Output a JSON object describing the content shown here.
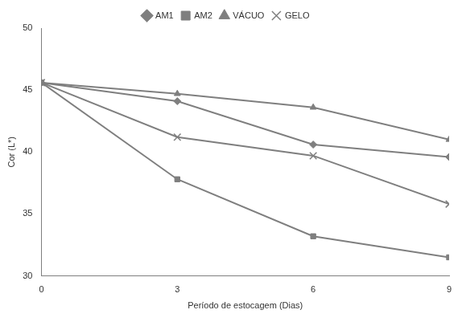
{
  "chart_data": {
    "type": "line",
    "x_label": "Período de estocagem (Dias)",
    "y_label": "Cor (L*)",
    "x": [
      0,
      3,
      6,
      9
    ],
    "xlim": [
      0,
      9
    ],
    "xticks": [
      0,
      3,
      6,
      9
    ],
    "ylim": [
      30,
      50
    ],
    "yticks": [
      30,
      35,
      40,
      45,
      50
    ],
    "grid": false,
    "legend": "top",
    "series": [
      {
        "name": "AM1",
        "color": "#7f7f7f",
        "marker": "diamond",
        "line_style": "solid",
        "values": [
          45.6,
          44.1,
          40.6,
          39.6
        ]
      },
      {
        "name": "AM2",
        "color": "#7f7f7f",
        "marker": "square",
        "line_style": "solid",
        "values": [
          45.6,
          37.8,
          33.2,
          31.5
        ]
      },
      {
        "name": "VÁCUO",
        "color": "#7f7f7f",
        "marker": "triangle",
        "line_style": "solid",
        "values": [
          45.6,
          44.7,
          43.6,
          41.0
        ]
      },
      {
        "name": "GELO",
        "color": "#7f7f7f",
        "marker": "x",
        "line_style": "solid",
        "values": [
          45.6,
          41.2,
          39.7,
          35.8
        ]
      }
    ]
  }
}
